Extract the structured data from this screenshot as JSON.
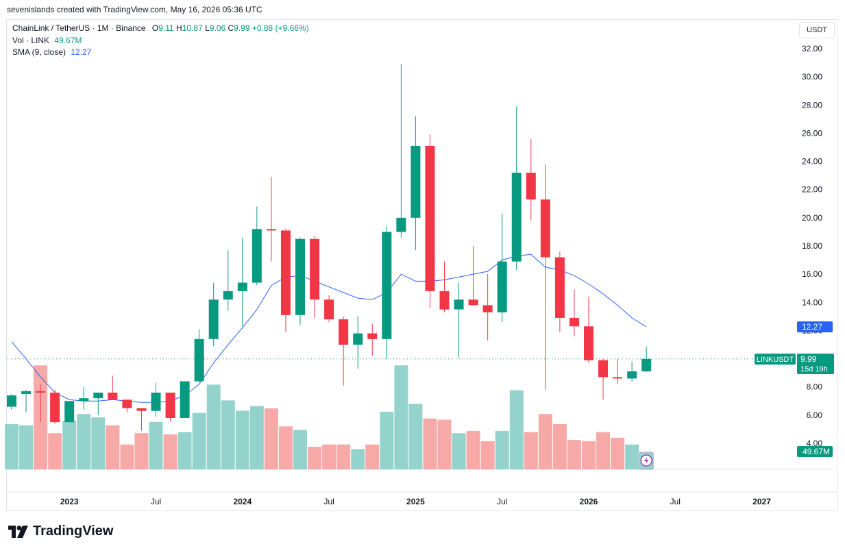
{
  "attribution": "sevenislands created with TradingView.com, May 16, 2026 05:36 UTC",
  "legend": {
    "symbol": "ChainLink / TetherUS · 1M · Binance",
    "o_label": "O",
    "o": "9.11",
    "h_label": "H",
    "h": "10.87",
    "l_label": "L",
    "l": "9.06",
    "c_label": "C",
    "c": "9.99",
    "change": "+0.88 (+9.66%)",
    "vol_label": "Vol · LINK",
    "vol": "49.67M",
    "sma_label": "SMA (9, close)",
    "sma": "12.27"
  },
  "currency": "USDT",
  "badges": {
    "symbol": "LINKUSDT",
    "price": "9.99",
    "countdown": "15d 19h",
    "sma": "12.27",
    "volume": "49.67M"
  },
  "logo": "TradingView",
  "colors": {
    "up": "#089981",
    "down": "#f23645",
    "sma": "#2962ff",
    "vol_up": "#94d3cc",
    "vol_down": "#f7a9a8"
  },
  "chart_data": {
    "type": "candlestick",
    "interval": "1M",
    "ylim": [
      3.3,
      32.9
    ],
    "y_ticks": [
      "4.00",
      "6.00",
      "8.00",
      "10.00",
      "12.00",
      "14.00",
      "16.00",
      "18.00",
      "20.00",
      "22.00",
      "24.00",
      "26.00",
      "28.00",
      "30.00",
      "32.00"
    ],
    "x_ticks": [
      {
        "label": "2023",
        "idx": 4
      },
      {
        "label": "Jul",
        "idx": 10
      },
      {
        "label": "2024",
        "idx": 16
      },
      {
        "label": "Jul",
        "idx": 22
      },
      {
        "label": "2025",
        "idx": 28
      },
      {
        "label": "Jul",
        "idx": 34
      },
      {
        "label": "2026",
        "idx": 40
      },
      {
        "label": "Jul",
        "idx": 46
      },
      {
        "label": "2027",
        "idx": 52
      }
    ],
    "candles": [
      {
        "o": 6.6,
        "h": 7.5,
        "l": 6.4,
        "c": 7.4
      },
      {
        "o": 7.5,
        "h": 7.8,
        "l": 6.2,
        "c": 7.7
      },
      {
        "o": 7.7,
        "h": 8.2,
        "l": 5.5,
        "c": 7.6
      },
      {
        "o": 7.6,
        "h": 7.8,
        "l": 5.4,
        "c": 5.5
      },
      {
        "o": 5.5,
        "h": 7.0,
        "l": 5.5,
        "c": 7.0
      },
      {
        "o": 7.0,
        "h": 8.0,
        "l": 6.4,
        "c": 7.2
      },
      {
        "o": 7.2,
        "h": 7.5,
        "l": 6.0,
        "c": 7.6
      },
      {
        "o": 7.6,
        "h": 8.8,
        "l": 7.1,
        "c": 7.1
      },
      {
        "o": 7.1,
        "h": 7.1,
        "l": 6.2,
        "c": 6.5
      },
      {
        "o": 6.5,
        "h": 6.5,
        "l": 4.9,
        "c": 6.3
      },
      {
        "o": 6.3,
        "h": 8.3,
        "l": 5.9,
        "c": 7.6
      },
      {
        "o": 7.6,
        "h": 7.6,
        "l": 5.6,
        "c": 5.8
      },
      {
        "o": 5.8,
        "h": 8.4,
        "l": 5.8,
        "c": 8.4
      },
      {
        "o": 8.4,
        "h": 12.1,
        "l": 8.3,
        "c": 11.4
      },
      {
        "o": 11.4,
        "h": 15.4,
        "l": 10.9,
        "c": 14.2
      },
      {
        "o": 14.2,
        "h": 17.7,
        "l": 13.4,
        "c": 14.8
      },
      {
        "o": 14.8,
        "h": 18.6,
        "l": 12.3,
        "c": 15.4
      },
      {
        "o": 15.4,
        "h": 20.8,
        "l": 15.2,
        "c": 19.2
      },
      {
        "o": 19.2,
        "h": 22.9,
        "l": 16.9,
        "c": 19.1
      },
      {
        "o": 19.1,
        "h": 19.2,
        "l": 11.9,
        "c": 13.1
      },
      {
        "o": 13.1,
        "h": 18.6,
        "l": 12.4,
        "c": 18.5
      },
      {
        "o": 18.5,
        "h": 18.7,
        "l": 12.9,
        "c": 14.2
      },
      {
        "o": 14.2,
        "h": 14.5,
        "l": 12.6,
        "c": 12.8
      },
      {
        "o": 12.8,
        "h": 13.0,
        "l": 8.1,
        "c": 11.0
      },
      {
        "o": 11.0,
        "h": 13.0,
        "l": 9.3,
        "c": 11.8
      },
      {
        "o": 11.8,
        "h": 12.5,
        "l": 10.2,
        "c": 11.4
      },
      {
        "o": 11.4,
        "h": 19.4,
        "l": 10.0,
        "c": 19.0
      },
      {
        "o": 19.0,
        "h": 30.9,
        "l": 18.6,
        "c": 20.0
      },
      {
        "o": 20.0,
        "h": 27.2,
        "l": 17.7,
        "c": 25.1
      },
      {
        "o": 25.1,
        "h": 25.9,
        "l": 13.6,
        "c": 14.8
      },
      {
        "o": 14.8,
        "h": 16.9,
        "l": 13.3,
        "c": 13.5
      },
      {
        "o": 13.5,
        "h": 15.4,
        "l": 10.1,
        "c": 14.2
      },
      {
        "o": 14.2,
        "h": 18.0,
        "l": 13.8,
        "c": 13.8
      },
      {
        "o": 13.8,
        "h": 16.0,
        "l": 11.3,
        "c": 13.3
      },
      {
        "o": 13.3,
        "h": 20.3,
        "l": 12.6,
        "c": 16.9
      },
      {
        "o": 16.9,
        "h": 27.9,
        "l": 16.3,
        "c": 23.2
      },
      {
        "o": 23.2,
        "h": 25.6,
        "l": 19.8,
        "c": 21.3
      },
      {
        "o": 21.3,
        "h": 23.8,
        "l": 7.8,
        "c": 17.2
      },
      {
        "o": 17.2,
        "h": 17.6,
        "l": 11.9,
        "c": 12.9
      },
      {
        "o": 12.9,
        "h": 14.9,
        "l": 11.6,
        "c": 12.3
      },
      {
        "o": 12.3,
        "h": 14.4,
        "l": 9.7,
        "c": 9.9
      },
      {
        "o": 9.9,
        "h": 10.0,
        "l": 7.1,
        "c": 8.7
      },
      {
        "o": 8.7,
        "h": 10.0,
        "l": 8.2,
        "c": 8.6
      },
      {
        "o": 8.6,
        "h": 9.8,
        "l": 8.4,
        "c": 9.11
      },
      {
        "o": 9.11,
        "h": 10.87,
        "l": 9.06,
        "c": 9.99
      }
    ],
    "volume_relative": [
      0.4,
      0.39,
      0.92,
      0.32,
      0.43,
      0.49,
      0.46,
      0.39,
      0.22,
      0.32,
      0.42,
      0.31,
      0.33,
      0.5,
      0.75,
      0.61,
      0.52,
      0.56,
      0.54,
      0.38,
      0.35,
      0.2,
      0.22,
      0.22,
      0.18,
      0.22,
      0.51,
      0.92,
      0.58,
      0.45,
      0.44,
      0.32,
      0.34,
      0.25,
      0.34,
      0.7,
      0.33,
      0.49,
      0.4,
      0.26,
      0.25,
      0.33,
      0.28,
      0.22,
      0.15
    ],
    "sma_period": 9,
    "sma_values": [
      11.2,
      10.0,
      8.7,
      7.6,
      7.1,
      7.0,
      7.0,
      7.1,
      7.0,
      6.9,
      6.9,
      7.0,
      7.4,
      8.2,
      9.7,
      11.0,
      12.2,
      13.5,
      15.2,
      15.8,
      15.9,
      15.5,
      15.1,
      14.7,
      14.3,
      14.2,
      14.7,
      16.0,
      15.5,
      15.5,
      15.6,
      15.8,
      16.0,
      16.2,
      17.0,
      17.3,
      17.4,
      16.5,
      16.3,
      15.9,
      15.3,
      14.6,
      13.8,
      12.9,
      12.27
    ]
  }
}
